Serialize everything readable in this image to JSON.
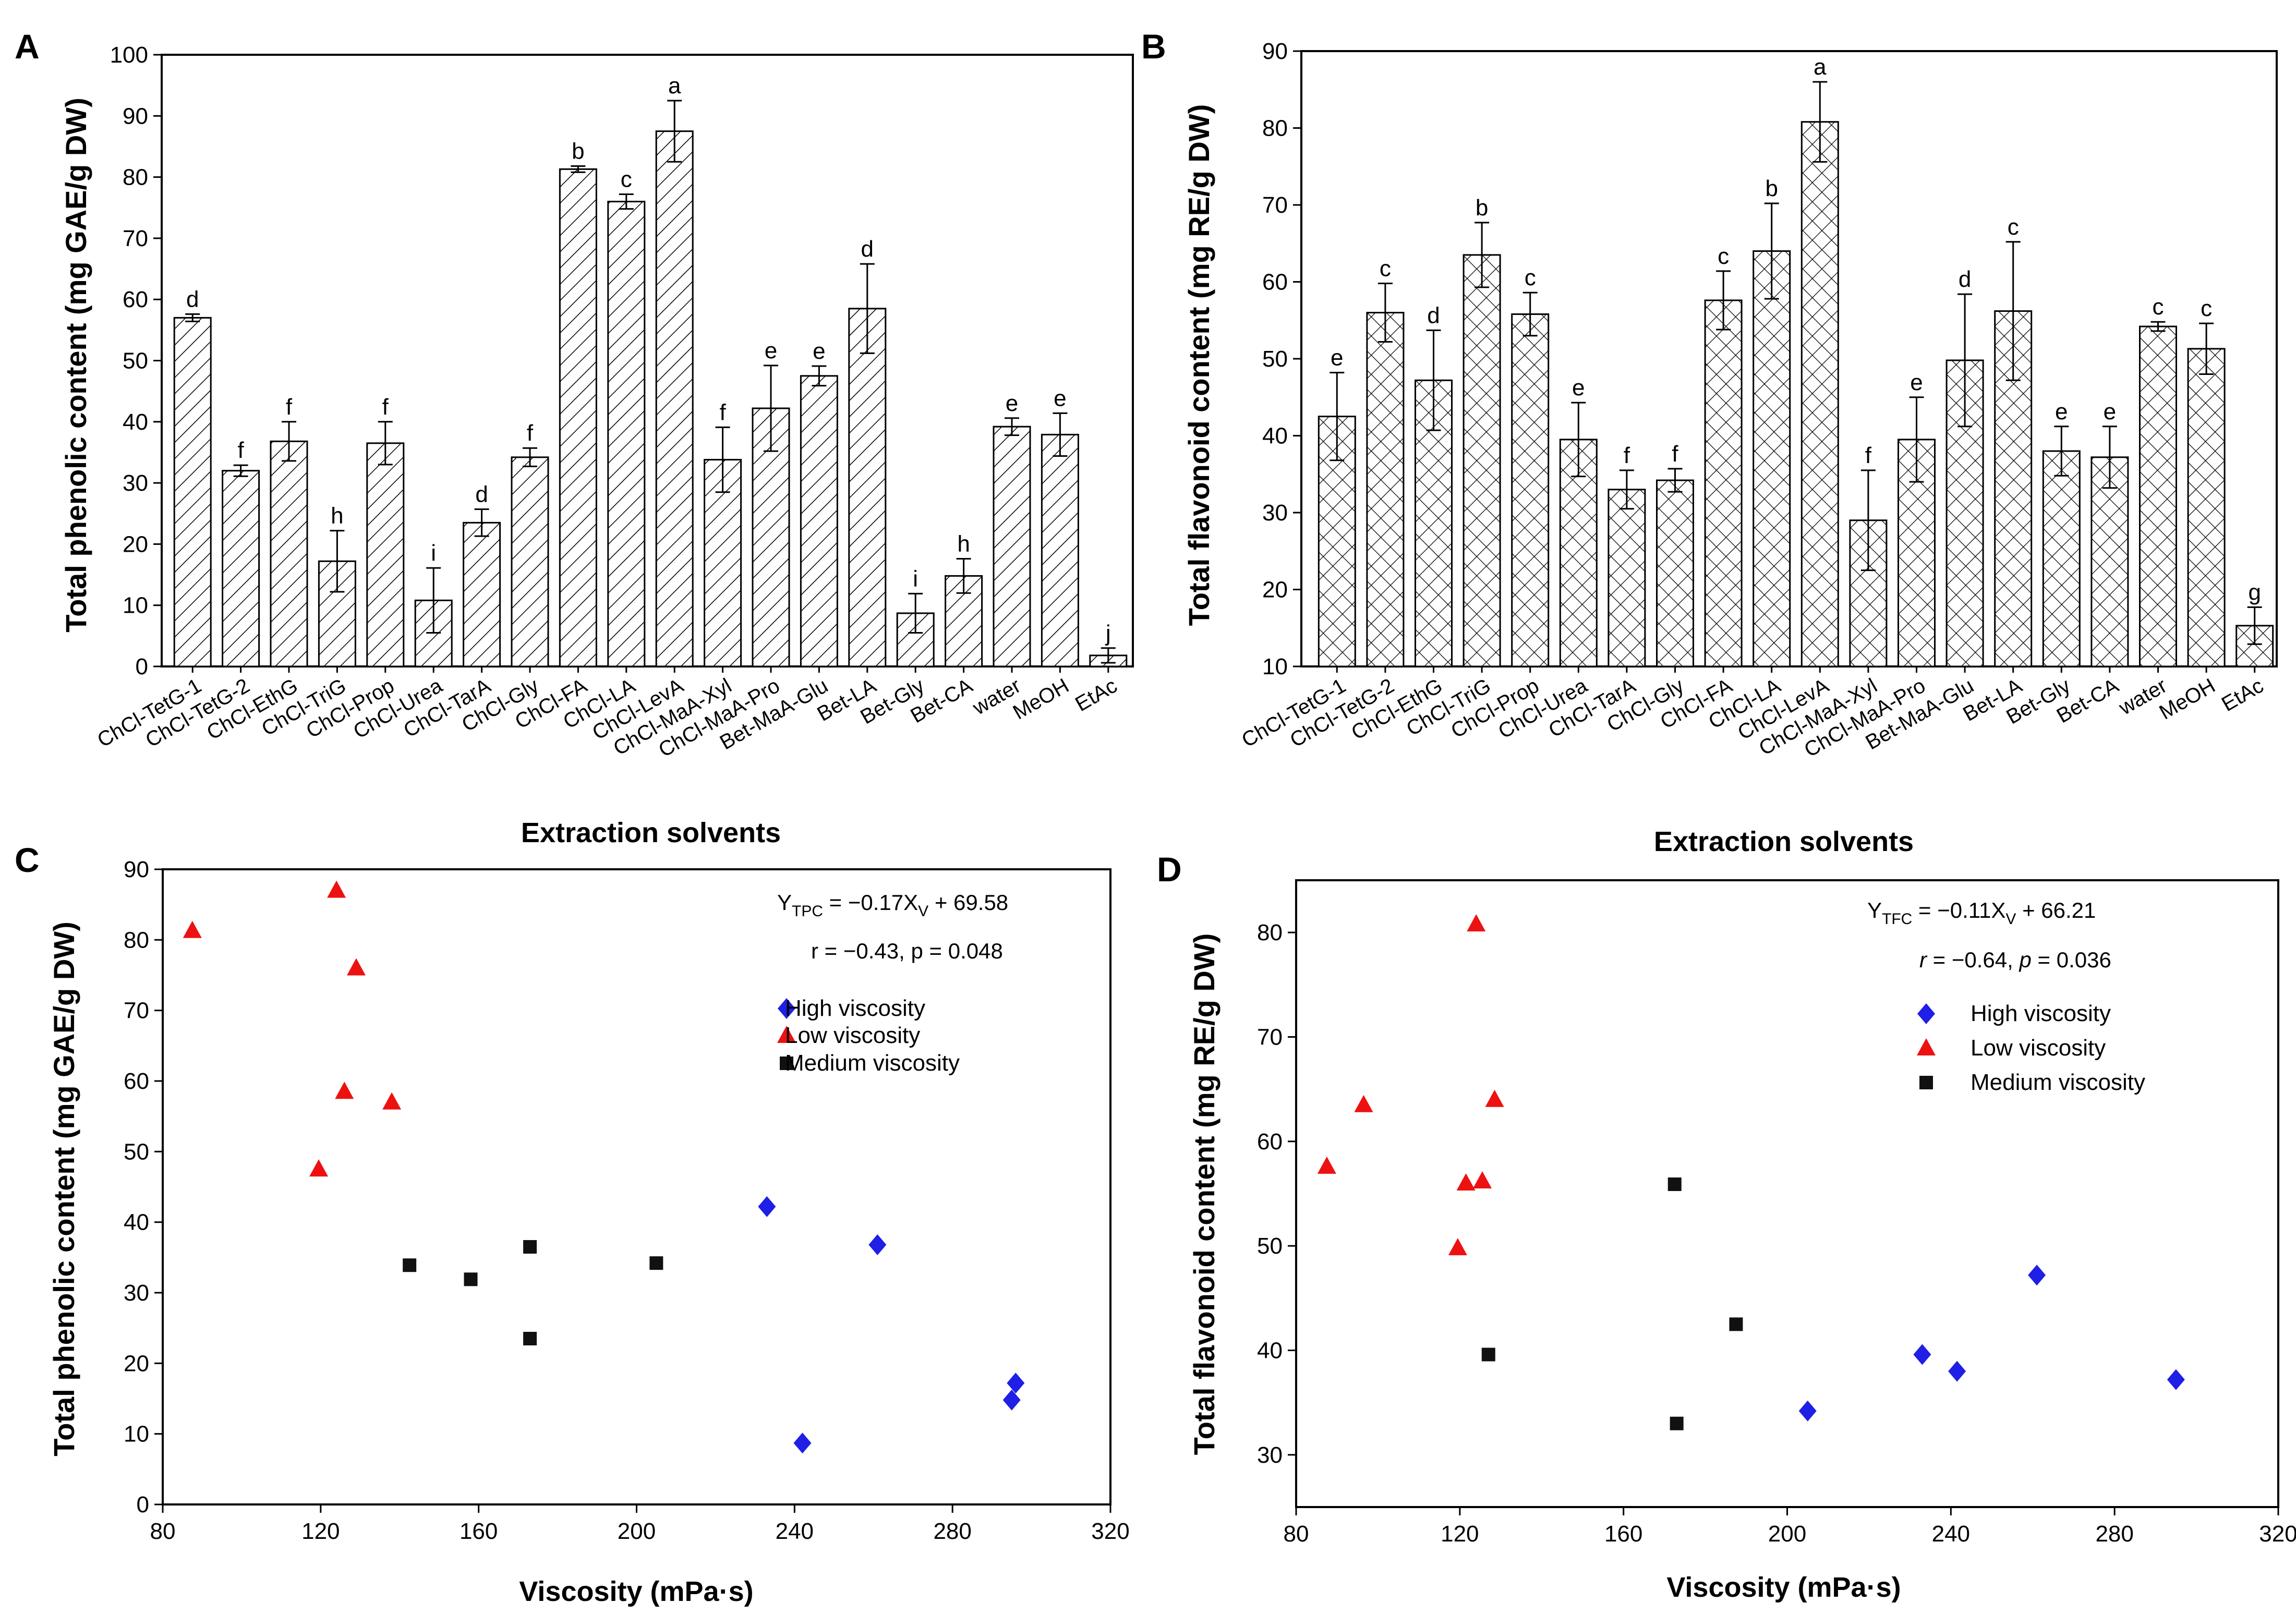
{
  "chart_data": [
    {
      "panel": "A",
      "type": "bar",
      "pattern": "diagonal-hatch",
      "ylabel": "Total phenolic content (mg GAE/g DW)",
      "xlabel": "Extraction solvents",
      "ylim": [
        0,
        100
      ],
      "yticks": [
        0,
        10,
        20,
        30,
        40,
        50,
        60,
        70,
        80,
        90,
        100
      ],
      "categories": [
        "ChCl-TetG-1",
        "ChCl-TetG-2",
        "ChCl-EthG",
        "ChCl-TriG",
        "ChCl-Prop",
        "ChCl-Urea",
        "ChCl-TarA",
        "ChCl-Gly",
        "ChCl-FA",
        "ChCl-LA",
        "ChCl-LevA",
        "ChCl-MaA-Xyl",
        "ChCl-MaA-Pro",
        "Bet-MaA-Glu",
        "Bet-LA",
        "Bet-Gly",
        "Bet-CA",
        "water",
        "MeOH",
        "EtAc"
      ],
      "values": [
        57,
        32,
        36.8,
        17.2,
        36.5,
        10.8,
        23.5,
        34.2,
        81.3,
        76,
        87.5,
        33.8,
        42.2,
        47.5,
        58.5,
        8.7,
        14.8,
        39.2,
        37.9,
        1.8
      ],
      "errors": [
        0.6,
        0.9,
        3.2,
        5,
        3.5,
        5.3,
        2.2,
        1.5,
        0.5,
        1.2,
        5,
        5.3,
        7,
        1.6,
        7.3,
        3.2,
        2.8,
        1.4,
        3.5,
        1.2
      ],
      "letters": [
        "d",
        "f",
        "f",
        "h",
        "f",
        "i",
        "d",
        "f",
        "b",
        "c",
        "a",
        "f",
        "e",
        "e",
        "d",
        "i",
        "h",
        "e",
        "e",
        "j"
      ]
    },
    {
      "panel": "B",
      "type": "bar",
      "pattern": "cross-hatch",
      "ylabel": "Total flavonoid content (mg RE/g DW)",
      "xlabel": "Extraction solvents",
      "ylim": [
        10,
        90
      ],
      "yticks": [
        10,
        20,
        30,
        40,
        50,
        60,
        70,
        80,
        90
      ],
      "categories": [
        "ChCl-TetG-1",
        "ChCl-TetG-2",
        "ChCl-EthG",
        "ChCl-TriG",
        "ChCl-Prop",
        "ChCl-Urea",
        "ChCl-TarA",
        "ChCl-Gly",
        "ChCl-FA",
        "ChCl-LA",
        "ChCl-LevA",
        "ChCl-MaA-Xyl",
        "ChCl-MaA-Pro",
        "Bet-MaA-Glu",
        "Bet-LA",
        "Bet-Gly",
        "Bet-CA",
        "water",
        "MeOH",
        "EtAc"
      ],
      "values": [
        42.5,
        56,
        47.2,
        63.5,
        55.8,
        39.5,
        33,
        34.2,
        57.6,
        64,
        80.8,
        29,
        39.5,
        49.8,
        56.2,
        38,
        37.2,
        54.2,
        51.3,
        15.3
      ],
      "errors": [
        5.7,
        3.8,
        6.5,
        4.2,
        2.8,
        4.8,
        2.5,
        1.5,
        3.8,
        6.2,
        5.2,
        6.5,
        5.5,
        8.6,
        9,
        3.2,
        4,
        0.6,
        3.3,
        2.4
      ],
      "letters": [
        "e",
        "c",
        "d",
        "b",
        "c",
        "e",
        "f",
        "f",
        "c",
        "b",
        "a",
        "f",
        "e",
        "d",
        "c",
        "e",
        "e",
        "c",
        "c",
        "g"
      ]
    },
    {
      "panel": "C",
      "type": "scatter",
      "ylabel": "Total phenolic content (mg GAE/g DW)",
      "xlabel": "Viscosity (mPa·s)",
      "xlim": [
        80,
        320
      ],
      "ylim": [
        0,
        90
      ],
      "xticks": [
        80,
        120,
        160,
        200,
        240,
        280,
        320
      ],
      "yticks": [
        0,
        10,
        20,
        30,
        40,
        50,
        60,
        70,
        80,
        90
      ],
      "equation": {
        "y": "Y",
        "y_sub": "TPC",
        "mid": " = −0.17X",
        "x_sub": "V",
        "end": " + 69.58"
      },
      "stats": {
        "r_label": "r",
        "r_value": " = −0.43, ",
        "p_label": "p",
        "p_value": " = 0.048"
      },
      "legend": [
        "High viscosity",
        "Low viscosity",
        "Medium viscosity"
      ],
      "series": [
        {
          "name": "High viscosity",
          "marker": "diamond",
          "color": "#1f1fe6",
          "x": [
            233,
            261,
            296,
            295,
            242
          ],
          "y": [
            42.2,
            36.8,
            17.2,
            14.8,
            8.7
          ]
        },
        {
          "name": "Low viscosity",
          "marker": "triangle",
          "color": "#ee1111",
          "x": [
            87.5,
            124,
            129,
            126,
            138,
            119.5
          ],
          "y": [
            81.3,
            87,
            76,
            58.5,
            57,
            47.5
          ]
        },
        {
          "name": "Medium viscosity",
          "marker": "square",
          "color": "#111111",
          "x": [
            142.5,
            158,
            173,
            173,
            205
          ],
          "y": [
            33.9,
            31.9,
            36.5,
            23.5,
            34.2
          ]
        }
      ]
    },
    {
      "panel": "D",
      "type": "scatter",
      "ylabel": "Total flavonoid content (mg RE/g DW)",
      "xlabel": "Viscosity (mPa·s)",
      "xlim": [
        80,
        320
      ],
      "ylim": [
        25,
        85
      ],
      "xticks": [
        80,
        120,
        160,
        200,
        240,
        280,
        320
      ],
      "yticks": [
        30,
        40,
        50,
        60,
        70,
        80
      ],
      "equation": {
        "y": "Y",
        "y_sub": "TFC",
        "mid": " = −0.11X",
        "x_sub": "V",
        "end": " + 66.21"
      },
      "stats": {
        "r_label": "r",
        "r_value": " = −0.64, ",
        "p_label": "p",
        "p_value": " = 0.036"
      },
      "legend": [
        "High viscosity",
        "Low viscosity",
        "Medium viscosity"
      ],
      "series": [
        {
          "name": "High viscosity",
          "marker": "diamond",
          "color": "#1f1fe6",
          "x": [
            205,
            233,
            241.5,
            261,
            295
          ],
          "y": [
            34.2,
            39.6,
            38,
            47.2,
            37.2
          ]
        },
        {
          "name": "Low viscosity",
          "marker": "triangle",
          "color": "#ee1111",
          "x": [
            87.5,
            96.5,
            119.5,
            121.5,
            125.5,
            124,
            128.5
          ],
          "y": [
            57.6,
            63.5,
            49.8,
            56,
            56.2,
            80.8,
            64
          ]
        },
        {
          "name": "Medium viscosity",
          "marker": "square",
          "color": "#111111",
          "x": [
            127,
            172.5,
            173,
            187.5
          ],
          "y": [
            39.6,
            55.9,
            33,
            42.5
          ]
        }
      ]
    }
  ]
}
